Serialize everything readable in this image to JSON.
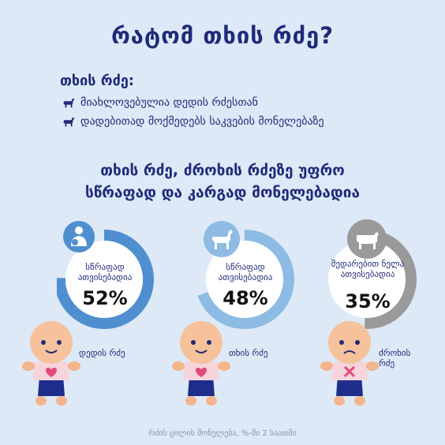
{
  "title": "რატომ თხის რძე?",
  "subtitle": "თხის რძე:",
  "bullets": [
    "მიახლოვებულია დედის რძესთან",
    "დადებითად მოქმედებს საკვების მონელებაზე"
  ],
  "headline_1": "თხის რძე, ძროხის რძეზე უფრო",
  "headline_2": "სწრაფად და კარგად მონელებადია",
  "cards": [
    {
      "label": "სწრაფად ათვისებადია",
      "percent": "52%",
      "value": 52,
      "milk": "დედის რძე",
      "icon": "breastfeeding-icon",
      "color": "#4f8fcf"
    },
    {
      "label": "სწრაფად ათვისებადია",
      "percent": "48%",
      "value": 48,
      "milk": "თხის რძე",
      "icon": "goat-icon",
      "color": "#8dbbe3"
    },
    {
      "label": "შედარებით ნელა ათვისებადია",
      "percent": "35%",
      "value": 35,
      "milk": "ძროხის რძე",
      "icon": "cow-icon",
      "color": "#9a9a9a"
    }
  ],
  "footer": "რძის ცილის მონელება, %-ში 2 საათში"
}
